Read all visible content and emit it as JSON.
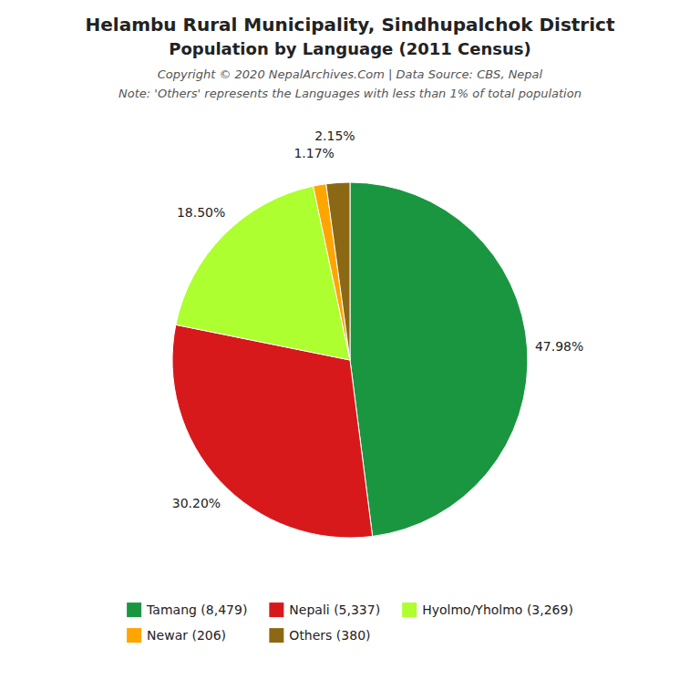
{
  "chart_data": {
    "type": "pie",
    "title": "Helambu Rural Municipality, Sindhupalchok District",
    "subtitle": "Population by Language (2011 Census)",
    "annotations": [
      "Copyright © 2020 NepalArchives.Com | Data Source: CBS, Nepal",
      "Note: 'Others' represents the Languages with less than 1% of total population"
    ],
    "categories": [
      "Tamang (8,479)",
      "Nepali (5,337)",
      "Hyolmo/Yholmo (3,269)",
      "Newar (206)",
      "Others (380)"
    ],
    "values": [
      47.98,
      30.2,
      18.5,
      1.17,
      2.15
    ],
    "value_labels": [
      "47.98%",
      "30.20%",
      "18.50%",
      "1.17%",
      "2.15%"
    ],
    "colors": [
      "#1a9641",
      "#d7191c",
      "#adff2f",
      "#ffa500",
      "#8b6914"
    ],
    "data_labels": true,
    "legend": "bottom"
  }
}
